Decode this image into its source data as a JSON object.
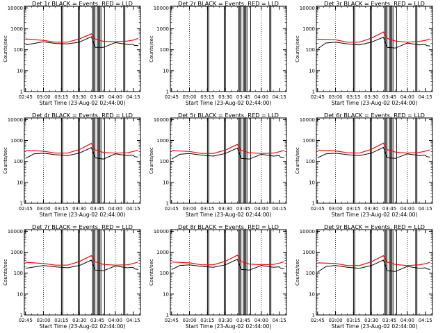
{
  "figure": {
    "xtick_labels": [
      "02:45",
      "03:00",
      "03:15",
      "03:30",
      "03:45",
      "04:00",
      "04:15"
    ],
    "ytick_labels": [
      "1",
      "10",
      "100",
      "1000",
      "10000"
    ],
    "ylabel": "Counts/sec",
    "xlabel": "Start Time (23-Aug-02 02:44:00)"
  },
  "colors": {
    "events": "#000000",
    "lld": "#ff0000",
    "axes": "#000000",
    "background": "#ffffff"
  },
  "chart_data": [
    {
      "type": "line",
      "title": "Det 1r BLACK = Events, RED = LLD",
      "xlabel": "Start Time (23-Aug-02 02:44:00)",
      "ylabel": "Counts/sec",
      "yscale": "log",
      "ylim": [
        1,
        12000
      ],
      "xlim": [
        "02:44",
        "04:21"
      ],
      "grid": "dotted vertical at 03:00 and 04:00",
      "legend": "in title",
      "series": [
        {
          "name": "Events",
          "x": [
            "02:45",
            "03:00",
            "03:10",
            "03:20",
            "03:30",
            "03:40",
            "03:43",
            "03:50",
            "04:00",
            "04:10",
            "04:15",
            "04:16",
            "04:19"
          ],
          "y": [
            170,
            240,
            200,
            190,
            230,
            420,
            130,
            130,
            220,
            180,
            180,
            160,
            160
          ]
        },
        {
          "name": "LLD",
          "x": [
            "02:45",
            "03:00",
            "03:10",
            "03:20",
            "03:30",
            "03:40",
            "03:43",
            "03:50",
            "04:00",
            "04:10",
            "04:15",
            "04:19"
          ],
          "y": [
            330,
            280,
            230,
            230,
            330,
            580,
            330,
            250,
            240,
            260,
            290,
            350
          ]
        }
      ]
    },
    {
      "type": "line",
      "title": "Det 2r BLACK = Events, RED = LLD",
      "xlabel": "Start Time (23-Aug-02 02:44:00)",
      "ylabel": "Counts/sec",
      "yscale": "log",
      "ylim": [
        1,
        12000
      ],
      "xlim": [
        "02:44",
        "04:21"
      ],
      "grid": "dotted vertical at 03:00 and 04:00",
      "legend": "in title",
      "series": [
        {
          "name": "Events",
          "x": [],
          "y": []
        },
        {
          "name": "LLD",
          "x": [],
          "y": []
        }
      ]
    },
    {
      "type": "line",
      "title": "Det 3r BLACK = Events, RED = LLD",
      "xlabel": "Start Time (23-Aug-02 02:44:00)",
      "ylabel": "Counts/sec",
      "yscale": "log",
      "ylim": [
        1,
        12000
      ],
      "xlim": [
        "02:44",
        "04:21"
      ],
      "grid": "dotted vertical at 03:00 and 04:00",
      "legend": "in title",
      "series": [
        {
          "name": "Events",
          "x": [
            "02:45",
            "02:52",
            "03:00",
            "03:10",
            "03:20",
            "03:30",
            "03:40",
            "03:43",
            "03:50",
            "04:00",
            "04:10",
            "04:15",
            "04:16",
            "04:19"
          ],
          "y": [
            110,
            210,
            230,
            190,
            170,
            230,
            400,
            130,
            120,
            210,
            170,
            180,
            160,
            150
          ]
        },
        {
          "name": "LLD",
          "x": [
            "02:45",
            "03:00",
            "03:10",
            "03:20",
            "03:30",
            "03:40",
            "03:43",
            "03:50",
            "04:00",
            "04:10",
            "04:15",
            "04:19"
          ],
          "y": [
            320,
            300,
            230,
            230,
            360,
            700,
            350,
            260,
            230,
            250,
            280,
            330
          ]
        }
      ]
    },
    {
      "type": "line",
      "title": "Det 4r BLACK = Events, RED = LLD",
      "xlabel": "Start Time (23-Aug-02 02:44:00)",
      "ylabel": "Counts/sec",
      "yscale": "log",
      "ylim": [
        1,
        12000
      ],
      "xlim": [
        "02:44",
        "04:21"
      ],
      "grid": "dotted vertical at 03:00 and 04:00",
      "legend": "in title",
      "series": [
        {
          "name": "Events",
          "x": [
            "02:45",
            "02:52",
            "03:00",
            "03:10",
            "03:20",
            "03:30",
            "03:40",
            "03:43",
            "03:50",
            "04:00",
            "04:10",
            "04:15",
            "04:16",
            "04:19"
          ],
          "y": [
            140,
            230,
            250,
            210,
            190,
            250,
            460,
            150,
            130,
            230,
            190,
            200,
            170,
            160
          ]
        },
        {
          "name": "LLD",
          "x": [
            "02:45",
            "03:00",
            "03:10",
            "03:20",
            "03:30",
            "03:40",
            "03:43",
            "03:50",
            "04:00",
            "04:10",
            "04:15",
            "04:19"
          ],
          "y": [
            340,
            310,
            250,
            250,
            370,
            730,
            360,
            270,
            250,
            260,
            300,
            350
          ]
        }
      ]
    },
    {
      "type": "line",
      "title": "Det 5r BLACK = Events, RED = LLD",
      "xlabel": "Start Time (23-Aug-02 02:44:00)",
      "ylabel": "Counts/sec",
      "yscale": "log",
      "ylim": [
        1,
        12000
      ],
      "xlim": [
        "02:44",
        "04:21"
      ],
      "grid": "dotted vertical at 03:00 and 04:00",
      "legend": "in title",
      "series": [
        {
          "name": "Events",
          "x": [
            "02:45",
            "02:52",
            "03:00",
            "03:10",
            "03:20",
            "03:30",
            "03:40",
            "03:43",
            "03:50",
            "04:00",
            "04:10",
            "04:15",
            "04:16",
            "04:19"
          ],
          "y": [
            130,
            220,
            240,
            200,
            180,
            240,
            440,
            140,
            130,
            220,
            180,
            190,
            160,
            150
          ]
        },
        {
          "name": "LLD",
          "x": [
            "02:45",
            "03:00",
            "03:10",
            "03:20",
            "03:30",
            "03:40",
            "03:43",
            "03:50",
            "04:00",
            "04:10",
            "04:15",
            "04:19"
          ],
          "y": [
            330,
            300,
            240,
            240,
            350,
            650,
            340,
            260,
            240,
            250,
            290,
            340
          ]
        }
      ]
    },
    {
      "type": "line",
      "title": "Det 6r BLACK = Events, RED = LLD",
      "xlabel": "Start Time (23-Aug-02 02:44:00)",
      "ylabel": "Counts/sec",
      "yscale": "log",
      "ylim": [
        1,
        12000
      ],
      "xlim": [
        "02:44",
        "04:21"
      ],
      "grid": "dotted vertical at 03:00 and 04:00",
      "legend": "in title",
      "series": [
        {
          "name": "Events",
          "x": [
            "02:45",
            "02:52",
            "03:00",
            "03:10",
            "03:20",
            "03:30",
            "03:40",
            "03:43",
            "03:50",
            "04:00",
            "04:10",
            "04:15",
            "04:16",
            "04:19"
          ],
          "y": [
            150,
            230,
            250,
            210,
            190,
            250,
            470,
            150,
            140,
            230,
            190,
            200,
            170,
            160
          ]
        },
        {
          "name": "LLD",
          "x": [
            "02:45",
            "03:00",
            "03:10",
            "03:20",
            "03:30",
            "03:40",
            "03:43",
            "03:50",
            "04:00",
            "04:10",
            "04:15",
            "04:19"
          ],
          "y": [
            350,
            320,
            260,
            250,
            380,
            750,
            370,
            280,
            250,
            270,
            310,
            360
          ]
        }
      ]
    },
    {
      "type": "line",
      "title": "Det 7r BLACK = Events, RED = LLD",
      "xlabel": "Start Time (23-Aug-02 02:44:00)",
      "ylabel": "Counts/sec",
      "yscale": "log",
      "ylim": [
        1,
        12000
      ],
      "xlim": [
        "02:44",
        "04:21"
      ],
      "grid": "dotted vertical at 03:00 and 04:00",
      "legend": "in title",
      "series": [
        {
          "name": "Events",
          "x": [
            "02:45",
            "03:00",
            "03:10",
            "03:20",
            "03:30",
            "03:40",
            "03:43",
            "03:50",
            "04:00",
            "04:10",
            "04:15",
            "04:16",
            "04:19"
          ],
          "y": [
            170,
            230,
            200,
            180,
            230,
            420,
            140,
            130,
            220,
            180,
            190,
            160,
            150
          ]
        },
        {
          "name": "LLD",
          "x": [
            "02:45",
            "03:00",
            "03:10",
            "03:20",
            "03:30",
            "03:40",
            "03:43",
            "03:50",
            "04:00",
            "04:10",
            "04:15",
            "04:19"
          ],
          "y": [
            330,
            290,
            240,
            240,
            360,
            690,
            350,
            260,
            240,
            250,
            290,
            340
          ]
        }
      ]
    },
    {
      "type": "line",
      "title": "Det 8r BLACK = Events, RED = LLD",
      "xlabel": "Start Time (23-Aug-02 02:44:00)",
      "ylabel": "Counts/sec",
      "yscale": "log",
      "ylim": [
        1,
        12000
      ],
      "xlim": [
        "02:44",
        "04:21"
      ],
      "grid": "dotted vertical at 03:00 and 04:00",
      "legend": "in title",
      "series": [
        {
          "name": "Events",
          "x": [
            "02:45",
            "02:52",
            "03:00",
            "03:10",
            "03:20",
            "03:30",
            "03:40",
            "03:43",
            "03:50",
            "04:00",
            "04:10",
            "04:15",
            "04:16",
            "04:19"
          ],
          "y": [
            150,
            230,
            250,
            210,
            190,
            250,
            460,
            150,
            140,
            230,
            190,
            200,
            170,
            160
          ]
        },
        {
          "name": "LLD",
          "x": [
            "02:45",
            "03:00",
            "03:10",
            "03:20",
            "03:30",
            "03:40",
            "03:43",
            "03:50",
            "04:00",
            "04:10",
            "04:15",
            "04:19"
          ],
          "y": [
            340,
            310,
            250,
            250,
            370,
            720,
            360,
            270,
            250,
            260,
            300,
            350
          ]
        }
      ]
    },
    {
      "type": "line",
      "title": "Det 9r BLACK = Events, RED = LLD",
      "xlabel": "Start Time (23-Aug-02 02:44:00)",
      "ylabel": "Counts/sec",
      "yscale": "log",
      "ylim": [
        1,
        12000
      ],
      "xlim": [
        "02:44",
        "04:21"
      ],
      "grid": "dotted vertical at 03:00 and 04:00",
      "legend": "in title",
      "series": [
        {
          "name": "Events",
          "x": [
            "02:45",
            "02:52",
            "03:00",
            "03:10",
            "03:20",
            "03:30",
            "03:40",
            "03:43",
            "03:50",
            "04:00",
            "04:10",
            "04:15",
            "04:16",
            "04:19"
          ],
          "y": [
            110,
            210,
            230,
            190,
            170,
            230,
            420,
            130,
            120,
            210,
            170,
            180,
            160,
            150
          ]
        },
        {
          "name": "LLD",
          "x": [
            "02:45",
            "03:00",
            "03:10",
            "03:20",
            "03:30",
            "03:40",
            "03:43",
            "03:50",
            "04:00",
            "04:10",
            "04:15",
            "04:19"
          ],
          "y": [
            310,
            290,
            230,
            230,
            350,
            680,
            340,
            260,
            230,
            250,
            280,
            330
          ]
        }
      ]
    }
  ],
  "gap_markers": [
    "03:15",
    "03:16",
    "03:29",
    "03:30",
    "03:41",
    "03:42",
    "03:43",
    "03:45",
    "03:46",
    "03:47",
    "03:48",
    "03:51",
    "04:07",
    "04:08"
  ]
}
